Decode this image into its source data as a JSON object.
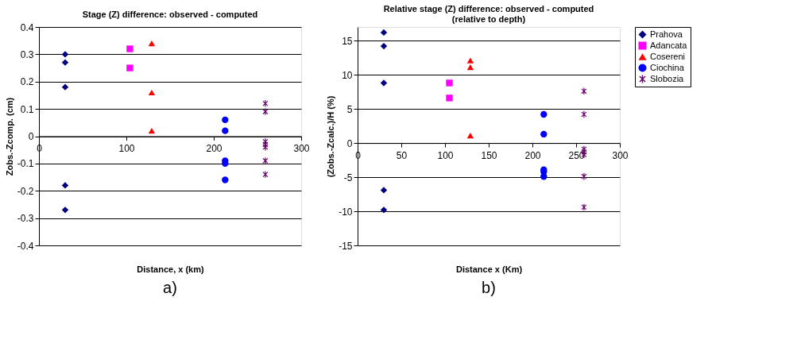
{
  "chart_data": [
    {
      "type": "scatter",
      "title": "Stage (Z) difference: observed - computed",
      "xlabel": "Distance, x (km)",
      "ylabel": "Zobs.-Zcomp. (cm)",
      "xlim": [
        0,
        300
      ],
      "xticks": [
        0,
        100,
        200,
        300
      ],
      "ylim": [
        -0.4,
        0.4
      ],
      "yticks": [
        -0.4,
        -0.3,
        -0.2,
        -0.1,
        0,
        0.1,
        0.2,
        0.3,
        0.4
      ],
      "grid": "y",
      "legend": "right",
      "annotations": [
        "a)"
      ],
      "series": [
        {
          "name": "Prahova",
          "color": "#000080",
          "marker": "diamond",
          "x": [
            30,
            30,
            30,
            30,
            30
          ],
          "values": [
            0.3,
            0.27,
            0.18,
            -0.18,
            -0.27
          ]
        },
        {
          "name": "Adancata",
          "color": "#ff00ff",
          "marker": "square",
          "x": [
            104,
            104
          ],
          "values": [
            0.32,
            0.25
          ]
        },
        {
          "name": "Cosereni",
          "color": "#ff0000",
          "marker": "triangle",
          "x": [
            129,
            129,
            129
          ],
          "values": [
            0.34,
            0.16,
            0.02
          ]
        },
        {
          "name": "Ciochina",
          "color": "#0000ff",
          "marker": "circle",
          "x": [
            213,
            213,
            213,
            213,
            213
          ],
          "values": [
            0.06,
            0.02,
            -0.09,
            -0.1,
            -0.16
          ]
        },
        {
          "name": "Slobozia",
          "color": "#660066",
          "marker": "cross",
          "x": [
            259,
            259,
            259,
            259,
            259,
            259,
            259
          ],
          "values": [
            0.12,
            0.09,
            -0.02,
            -0.03,
            -0.04,
            -0.09,
            -0.14
          ]
        }
      ]
    },
    {
      "type": "scatter",
      "title": "Relative stage (Z) difference: observed - computed\n(relative to depth)",
      "xlabel": "Distance x (Km)",
      "ylabel": "(Zobs.-Zcalc.)/H (%)",
      "xlim": [
        0,
        300
      ],
      "xticks": [
        0,
        50,
        100,
        150,
        200,
        250,
        300
      ],
      "ylim": [
        -15,
        17
      ],
      "yticks": [
        -15,
        -10,
        -5,
        0,
        5,
        10,
        15
      ],
      "grid": "y",
      "legend": "right",
      "annotations": [
        "b)"
      ],
      "series": [
        {
          "name": "Prahova",
          "color": "#000080",
          "marker": "diamond",
          "x": [
            30,
            30,
            30,
            30,
            30
          ],
          "values": [
            16.2,
            14.2,
            8.8,
            -6.9,
            -9.8
          ]
        },
        {
          "name": "Adancata",
          "color": "#ff00ff",
          "marker": "square",
          "x": [
            105,
            105
          ],
          "values": [
            8.8,
            6.6
          ]
        },
        {
          "name": "Cosereni",
          "color": "#ff0000",
          "marker": "triangle",
          "x": [
            129,
            129,
            129
          ],
          "values": [
            12.1,
            11.1,
            1.1
          ]
        },
        {
          "name": "Ciochina",
          "color": "#0000ff",
          "marker": "circle",
          "x": [
            213,
            213,
            213,
            213,
            213
          ],
          "values": [
            4.2,
            1.3,
            -3.9,
            -4.2,
            -4.9
          ]
        },
        {
          "name": "Slobozia",
          "color": "#660066",
          "marker": "cross",
          "x": [
            259,
            259,
            259,
            259,
            259,
            259,
            259
          ],
          "values": [
            7.6,
            4.2,
            -0.9,
            -1.3,
            -1.7,
            -4.9,
            -9.4
          ]
        }
      ]
    }
  ]
}
